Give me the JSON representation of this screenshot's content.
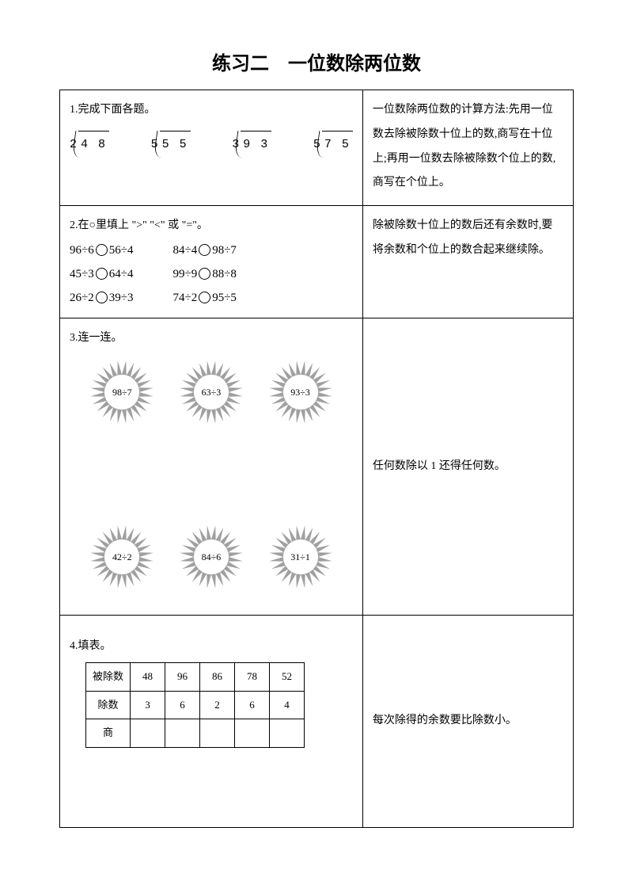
{
  "title": "练习二　一位数除两位数",
  "q1": {
    "title": "1.完成下面各题。",
    "problems": [
      {
        "divisor": "2",
        "dividend": "4 8"
      },
      {
        "divisor": "5",
        "dividend": "5 5"
      },
      {
        "divisor": "3",
        "dividend": "9 3"
      },
      {
        "divisor": "5",
        "dividend": "7 5"
      }
    ],
    "note": "一位数除两位数的计算方法:先用一位数去除被除数十位上的数,商写在十位上;再用一位数去除被除数个位上的数,商写在个位上。"
  },
  "q2": {
    "title": "2.在○里填上 \">\" \"<\" 或 \"=\"。",
    "pairs": [
      [
        "96÷6",
        "56÷4",
        "84÷4",
        "98÷7"
      ],
      [
        "45÷3",
        "64÷4",
        "99÷9",
        "88÷8"
      ],
      [
        "26÷2",
        "39÷3",
        "74÷2",
        "95÷5"
      ]
    ],
    "note": "除被除数十位上的数后还有余数时,要将余数和个位上的数合起来继续除。"
  },
  "q3": {
    "title": "3.连一连。",
    "top": [
      "98÷7",
      "63÷3",
      "93÷3"
    ],
    "bottom": [
      "42÷2",
      "84÷6",
      "31÷1"
    ],
    "note": "任何数除以 1 还得任何数。",
    "sun_style": {
      "center_fill": "#ffffff",
      "ray_fill": "#8f8f8f",
      "ray_count": 24,
      "inner_r": 22,
      "outer_r": 40
    }
  },
  "q4": {
    "title": "4.填表。",
    "headers": [
      "被除数",
      "除数",
      "商"
    ],
    "cols": [
      [
        "48",
        "3",
        ""
      ],
      [
        "96",
        "6",
        ""
      ],
      [
        "86",
        "2",
        ""
      ],
      [
        "78",
        "6",
        ""
      ],
      [
        "52",
        "4",
        ""
      ]
    ],
    "note": "每次除得的余数要比除数小。"
  }
}
